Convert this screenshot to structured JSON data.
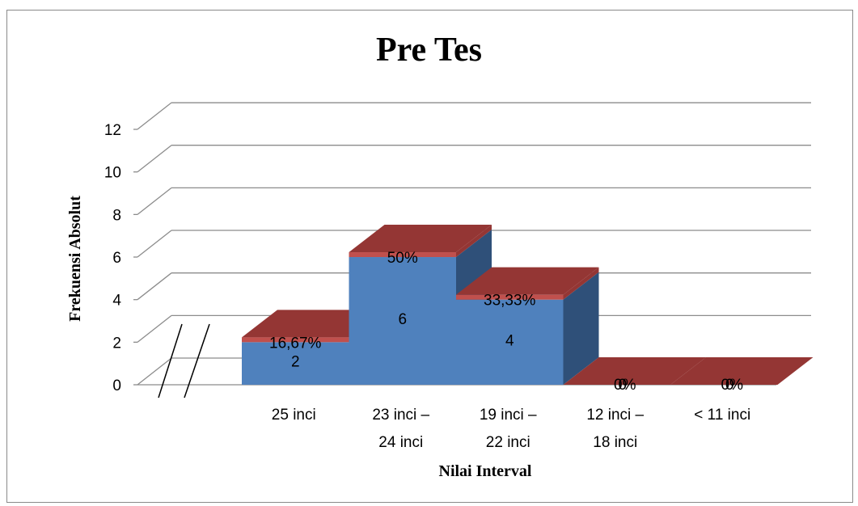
{
  "chart_data": {
    "type": "bar",
    "title": "Pre Tes",
    "xlabel": "Nilai Interval",
    "ylabel": "Frekuensi Absolut",
    "ylim": [
      0,
      12
    ],
    "yticks": [
      "0",
      "2",
      "4",
      "6",
      "8",
      "10",
      "12"
    ],
    "grid": true,
    "legend": "none",
    "categories": [
      [
        "25 inci"
      ],
      [
        "23 inci –",
        "24 inci"
      ],
      [
        "19 inci  –",
        "22 inci"
      ],
      [
        "12 inci  –",
        "18 inci"
      ],
      [
        "< 11 inci"
      ]
    ],
    "series": [
      {
        "values": [
          2,
          6,
          4,
          0,
          0
        ],
        "labels": [
          "2",
          "6",
          "4",
          "0",
          "0"
        ]
      },
      {
        "values": [
          0.1667,
          0.5,
          0.3333,
          0,
          0
        ],
        "labels": [
          "16,67%",
          "50%",
          "33,33%",
          "0%",
          "0%"
        ]
      }
    ],
    "colors": {
      "frequency_front": "#4f81bd",
      "frequency_side": "#2f5079",
      "percent_band": "#c0504d",
      "percent_top": "#943634",
      "grid": "#8c8c8c"
    }
  }
}
